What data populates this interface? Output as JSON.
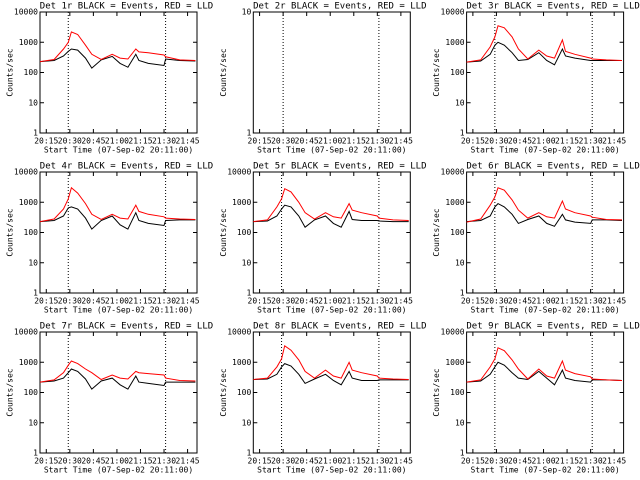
{
  "chart_data": [
    {
      "type": "line",
      "title": "Det 1r BLACK = Events, RED = LLD",
      "xlabel": "Start Time (07-Sep-02 20:11:00)",
      "ylabel": "Counts/sec",
      "log_y": true,
      "x": [
        "20:11",
        "20:20",
        "20:26",
        "20:29",
        "20:31",
        "20:35",
        "20:40",
        "20:44",
        "20:50",
        "20:57",
        "21:02",
        "21:07",
        "21:12",
        "21:14",
        "21:20",
        "21:30",
        "21:31",
        "21:40",
        "21:50"
      ],
      "xlim": [
        "20:11",
        "21:51"
      ],
      "xticks": [
        "20:15",
        "20:30",
        "20:45",
        "21:00",
        "21:15",
        "21:30",
        "21:45"
      ],
      "ylim": [
        1,
        10000
      ],
      "yticks": [
        1,
        10,
        100,
        1000,
        10000
      ],
      "vlines": [
        "20:29",
        "21:31"
      ],
      "series": [
        {
          "color": "#000000",
          "values": [
            230,
            250,
            350,
            500,
            600,
            550,
            300,
            140,
            260,
            340,
            200,
            150,
            400,
            250,
            200,
            170,
            280,
            250,
            240
          ]
        },
        {
          "color": "#ff0000",
          "values": [
            230,
            270,
            600,
            1000,
            2200,
            1800,
            800,
            400,
            270,
            400,
            300,
            280,
            600,
            480,
            450,
            380,
            330,
            260,
            250
          ]
        }
      ]
    },
    {
      "type": "line",
      "title": "Det 2r BLACK = Events, RED = LLD",
      "xlabel": "Start Time (07-Sep-02 20:11:00)",
      "ylabel": "Counts/sec",
      "log_y": true,
      "x": [],
      "xlim": [
        "20:11",
        "21:51"
      ],
      "xticks": [
        "20:15",
        "20:30",
        "20:45",
        "21:00",
        "21:15",
        "21:30",
        "21:45"
      ],
      "ylim": [
        1,
        10
      ],
      "yticks": [
        1,
        10
      ],
      "vlines": [
        "20:30",
        "21:31"
      ],
      "series": []
    },
    {
      "type": "line",
      "title": "Det 3r BLACK = Events, RED = LLD",
      "xlabel": "Start Time (07-Sep-02 20:11:00)",
      "ylabel": "Counts/sec",
      "log_y": true,
      "x": [
        "20:11",
        "20:20",
        "20:26",
        "20:29",
        "20:31",
        "20:35",
        "20:40",
        "20:44",
        "20:50",
        "20:57",
        "21:02",
        "21:07",
        "21:12",
        "21:14",
        "21:20",
        "21:30",
        "21:31",
        "21:40",
        "21:50"
      ],
      "xlim": [
        "20:11",
        "21:51"
      ],
      "xticks": [
        "20:15",
        "20:30",
        "20:45",
        "21:00",
        "21:15",
        "21:30",
        "21:45"
      ],
      "ylim": [
        1,
        10000
      ],
      "yticks": [
        1,
        10,
        100,
        1000,
        10000
      ],
      "vlines": [
        "20:29",
        "21:31"
      ],
      "series": [
        {
          "color": "#000000",
          "values": [
            220,
            240,
            400,
            800,
            1000,
            800,
            450,
            250,
            270,
            450,
            250,
            180,
            600,
            350,
            300,
            250,
            250,
            250,
            250
          ]
        },
        {
          "color": "#ff0000",
          "values": [
            220,
            260,
            700,
            1500,
            3500,
            3000,
            1500,
            600,
            280,
            550,
            350,
            300,
            1200,
            500,
            400,
            300,
            280,
            260,
            250
          ]
        }
      ]
    },
    {
      "type": "line",
      "title": "Det 4r BLACK = Events, RED = LLD",
      "xlabel": "Start Time (07-Sep-02 20:11:00)",
      "ylabel": "Counts/sec",
      "log_y": true,
      "x": [
        "20:11",
        "20:20",
        "20:26",
        "20:29",
        "20:31",
        "20:35",
        "20:40",
        "20:44",
        "20:50",
        "20:57",
        "21:02",
        "21:07",
        "21:12",
        "21:14",
        "21:20",
        "21:30",
        "21:31",
        "21:40",
        "21:50"
      ],
      "xlim": [
        "20:11",
        "21:51"
      ],
      "xticks": [
        "20:15",
        "20:30",
        "20:45",
        "21:00",
        "21:15",
        "21:30",
        "21:45"
      ],
      "ylim": [
        1,
        10000
      ],
      "yticks": [
        1,
        10,
        100,
        1000,
        10000
      ],
      "vlines": [
        "20:29",
        "21:31"
      ],
      "series": [
        {
          "color": "#000000",
          "values": [
            230,
            250,
            350,
            650,
            700,
            600,
            300,
            130,
            250,
            350,
            180,
            130,
            450,
            250,
            200,
            170,
            250,
            260,
            260
          ]
        },
        {
          "color": "#ff0000",
          "values": [
            230,
            280,
            600,
            1300,
            3000,
            2000,
            900,
            400,
            270,
            400,
            300,
            280,
            800,
            500,
            400,
            330,
            300,
            280,
            270
          ]
        }
      ]
    },
    {
      "type": "line",
      "title": "Det 5r BLACK = Events, RED = LLD",
      "xlabel": "Start Time (07-Sep-02 20:11:00)",
      "ylabel": "Counts/sec",
      "log_y": true,
      "x": [
        "20:11",
        "20:20",
        "20:26",
        "20:29",
        "20:31",
        "20:35",
        "20:40",
        "20:44",
        "20:50",
        "20:57",
        "21:02",
        "21:07",
        "21:12",
        "21:14",
        "21:20",
        "21:30",
        "21:31",
        "21:40",
        "21:50"
      ],
      "xlim": [
        "20:11",
        "21:51"
      ],
      "xticks": [
        "20:15",
        "20:30",
        "20:45",
        "21:00",
        "21:15",
        "21:30",
        "21:45"
      ],
      "ylim": [
        1,
        10000
      ],
      "yticks": [
        1,
        10,
        100,
        1000,
        10000
      ],
      "vlines": [
        "20:29",
        "21:31"
      ],
      "series": [
        {
          "color": "#000000",
          "values": [
            230,
            240,
            350,
            600,
            800,
            700,
            350,
            150,
            260,
            350,
            200,
            150,
            500,
            270,
            250,
            250,
            240,
            230,
            230
          ]
        },
        {
          "color": "#ff0000",
          "values": [
            230,
            260,
            700,
            1300,
            2800,
            2200,
            1000,
            450,
            280,
            450,
            330,
            300,
            900,
            550,
            450,
            350,
            300,
            260,
            250
          ]
        }
      ]
    },
    {
      "type": "line",
      "title": "Det 6r BLACK = Events, RED = LLD",
      "xlabel": "Start Time (07-Sep-02 20:11:00)",
      "ylabel": "Counts/sec",
      "log_y": true,
      "x": [
        "20:11",
        "20:20",
        "20:26",
        "20:29",
        "20:31",
        "20:35",
        "20:40",
        "20:44",
        "20:50",
        "20:57",
        "21:02",
        "21:07",
        "21:12",
        "21:14",
        "21:20",
        "21:30",
        "21:31",
        "21:40",
        "21:50"
      ],
      "xlim": [
        "20:11",
        "21:51"
      ],
      "xticks": [
        "20:15",
        "20:30",
        "20:45",
        "21:00",
        "21:15",
        "21:30",
        "21:45"
      ],
      "ylim": [
        1,
        10000
      ],
      "yticks": [
        1,
        10,
        100,
        1000,
        10000
      ],
      "vlines": [
        "20:29",
        "21:31"
      ],
      "series": [
        {
          "color": "#000000",
          "values": [
            230,
            250,
            350,
            700,
            900,
            700,
            400,
            200,
            270,
            350,
            200,
            160,
            400,
            260,
            220,
            200,
            260,
            260,
            250
          ]
        },
        {
          "color": "#ff0000",
          "values": [
            220,
            280,
            800,
            1500,
            3000,
            2500,
            1200,
            550,
            300,
            450,
            330,
            300,
            1100,
            600,
            450,
            350,
            320,
            270,
            260
          ]
        }
      ]
    },
    {
      "type": "line",
      "title": "Det 7r BLACK = Events, RED = LLD",
      "xlabel": "Start Time (07-Sep-02 20:11:00)",
      "ylabel": "Counts/sec",
      "log_y": true,
      "x": [
        "20:11",
        "20:20",
        "20:26",
        "20:29",
        "20:31",
        "20:35",
        "20:40",
        "20:44",
        "20:50",
        "20:57",
        "21:02",
        "21:07",
        "21:12",
        "21:14",
        "21:20",
        "21:30",
        "21:31",
        "21:40",
        "21:50"
      ],
      "xlim": [
        "20:11",
        "21:51"
      ],
      "xticks": [
        "20:15",
        "20:30",
        "20:45",
        "21:00",
        "21:15",
        "21:30",
        "21:45"
      ],
      "ylim": [
        1,
        10000
      ],
      "yticks": [
        1,
        10,
        100,
        1000,
        10000
      ],
      "vlines": [
        "20:29",
        "21:31"
      ],
      "series": [
        {
          "color": "#000000",
          "values": [
            220,
            240,
            300,
            450,
            600,
            500,
            280,
            130,
            240,
            300,
            180,
            130,
            350,
            220,
            200,
            170,
            220,
            220,
            220
          ]
        },
        {
          "color": "#ff0000",
          "values": [
            220,
            260,
            450,
            800,
            1100,
            900,
            600,
            450,
            270,
            380,
            300,
            280,
            500,
            450,
            420,
            380,
            300,
            250,
            240
          ]
        }
      ]
    },
    {
      "type": "line",
      "title": "Det 8r BLACK = Events, RED = LLD",
      "xlabel": "Start Time (07-Sep-02 20:11:00)",
      "ylabel": "Counts/sec",
      "log_y": true,
      "x": [
        "20:11",
        "20:20",
        "20:26",
        "20:29",
        "20:31",
        "20:35",
        "20:40",
        "20:44",
        "20:50",
        "20:57",
        "21:02",
        "21:07",
        "21:12",
        "21:14",
        "21:20",
        "21:30",
        "21:31",
        "21:40",
        "21:50"
      ],
      "xlim": [
        "20:11",
        "21:51"
      ],
      "xticks": [
        "20:15",
        "20:30",
        "20:45",
        "21:00",
        "21:15",
        "21:30",
        "21:45"
      ],
      "ylim": [
        1,
        10000
      ],
      "yticks": [
        1,
        10,
        100,
        1000,
        10000
      ],
      "vlines": [
        "20:29",
        "21:31"
      ],
      "series": [
        {
          "color": "#000000",
          "values": [
            270,
            280,
            400,
            700,
            900,
            750,
            400,
            200,
            280,
            400,
            250,
            180,
            500,
            300,
            250,
            250,
            260,
            260,
            260
          ]
        },
        {
          "color": "#ff0000",
          "values": [
            270,
            300,
            700,
            1300,
            3500,
            2500,
            1200,
            500,
            300,
            550,
            350,
            300,
            1000,
            550,
            450,
            350,
            300,
            280,
            270
          ]
        }
      ]
    },
    {
      "type": "line",
      "title": "Det 9r BLACK = Events, RED = LLD",
      "xlabel": "Start Time (07-Sep-02 20:11:00)",
      "ylabel": "Counts/sec",
      "log_y": true,
      "x": [
        "20:11",
        "20:20",
        "20:26",
        "20:29",
        "20:31",
        "20:35",
        "20:40",
        "20:44",
        "20:50",
        "20:57",
        "21:02",
        "21:07",
        "21:12",
        "21:14",
        "21:20",
        "21:30",
        "21:31",
        "21:40",
        "21:50"
      ],
      "xlim": [
        "20:11",
        "21:51"
      ],
      "xticks": [
        "20:15",
        "20:30",
        "20:45",
        "21:00",
        "21:15",
        "21:30",
        "21:45"
      ],
      "ylim": [
        1,
        10000
      ],
      "yticks": [
        1,
        10,
        100,
        1000,
        10000
      ],
      "vlines": [
        "20:29",
        "21:31"
      ],
      "series": [
        {
          "color": "#000000",
          "values": [
            220,
            240,
            400,
            700,
            1000,
            800,
            450,
            300,
            270,
            500,
            300,
            180,
            550,
            300,
            250,
            220,
            260,
            260,
            250
          ]
        },
        {
          "color": "#ff0000",
          "values": [
            220,
            260,
            700,
            1300,
            3000,
            2400,
            1200,
            600,
            280,
            600,
            350,
            300,
            1100,
            550,
            420,
            330,
            280,
            260,
            250
          ]
        }
      ]
    }
  ]
}
